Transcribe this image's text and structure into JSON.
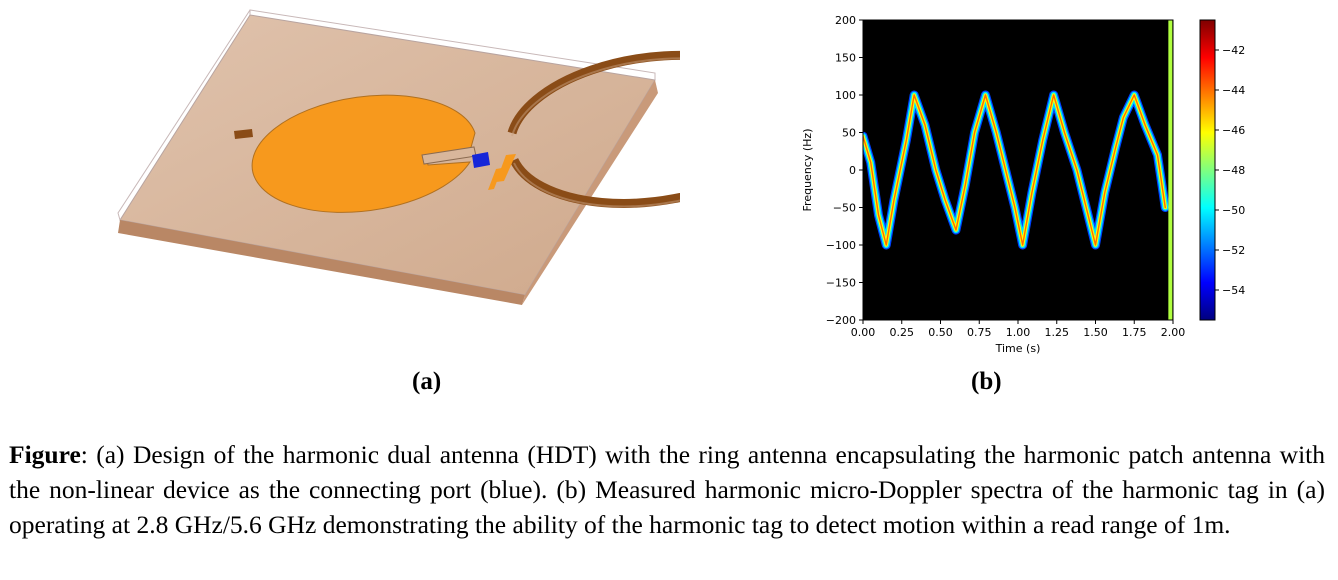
{
  "panel_a": {
    "label": "(a)"
  },
  "panel_b": {
    "label": "(b)",
    "chart_data": {
      "type": "heatmap",
      "title": "",
      "xlabel": "Time (s)",
      "ylabel": "Frequency (Hz)",
      "xlim": [
        0,
        2.0
      ],
      "ylim": [
        -200,
        200
      ],
      "x_ticks": [
        "0.00",
        "0.25",
        "0.50",
        "0.75",
        "1.00",
        "1.25",
        "1.50",
        "1.75",
        "2.00"
      ],
      "y_ticks": [
        "200",
        "150",
        "100",
        "50",
        "0",
        "−50",
        "−100",
        "−150",
        "−200"
      ],
      "colorbar_ticks": [
        "−42",
        "−44",
        "−46",
        "−48",
        "−50",
        "−52",
        "−54"
      ],
      "colorbar_range": [
        -55.5,
        -40.5
      ],
      "colormap": "jet",
      "background": "#000000",
      "trace": [
        {
          "t": 0.0,
          "f": 45
        },
        {
          "t": 0.05,
          "f": 10
        },
        {
          "t": 0.1,
          "f": -60
        },
        {
          "t": 0.15,
          "f": -100
        },
        {
          "t": 0.2,
          "f": -40
        },
        {
          "t": 0.28,
          "f": 40
        },
        {
          "t": 0.33,
          "f": 100
        },
        {
          "t": 0.4,
          "f": 60
        },
        {
          "t": 0.47,
          "f": 0
        },
        {
          "t": 0.53,
          "f": -40
        },
        {
          "t": 0.6,
          "f": -80
        },
        {
          "t": 0.66,
          "f": -20
        },
        {
          "t": 0.72,
          "f": 50
        },
        {
          "t": 0.79,
          "f": 100
        },
        {
          "t": 0.86,
          "f": 50
        },
        {
          "t": 0.92,
          "f": 0
        },
        {
          "t": 0.98,
          "f": -50
        },
        {
          "t": 1.03,
          "f": -100
        },
        {
          "t": 1.09,
          "f": -30
        },
        {
          "t": 1.16,
          "f": 40
        },
        {
          "t": 1.23,
          "f": 100
        },
        {
          "t": 1.3,
          "f": 50
        },
        {
          "t": 1.38,
          "f": 0
        },
        {
          "t": 1.44,
          "f": -50
        },
        {
          "t": 1.5,
          "f": -100
        },
        {
          "t": 1.56,
          "f": -30
        },
        {
          "t": 1.63,
          "f": 30
        },
        {
          "t": 1.68,
          "f": 70
        },
        {
          "t": 1.75,
          "f": 100
        },
        {
          "t": 1.82,
          "f": 60
        },
        {
          "t": 1.9,
          "f": 20
        },
        {
          "t": 1.95,
          "f": -50
        }
      ]
    }
  },
  "caption": {
    "lead": "Figure",
    "text": ": (a) Design of the harmonic dual antenna (HDT) with the ring antenna encapsulating the harmonic patch antenna with the non-linear device as the connecting port (blue). (b) Measured harmonic micro-Doppler spectra of the harmonic tag in (a) operating at 2.8 GHz/5.6 GHz demonstrating the ability of the harmonic tag to detect motion within a read range of 1m."
  },
  "colors": {
    "substrate": "#d8b69b",
    "patch": "#f7991d",
    "ring": "#8a4c17",
    "port": "#1626d8"
  }
}
